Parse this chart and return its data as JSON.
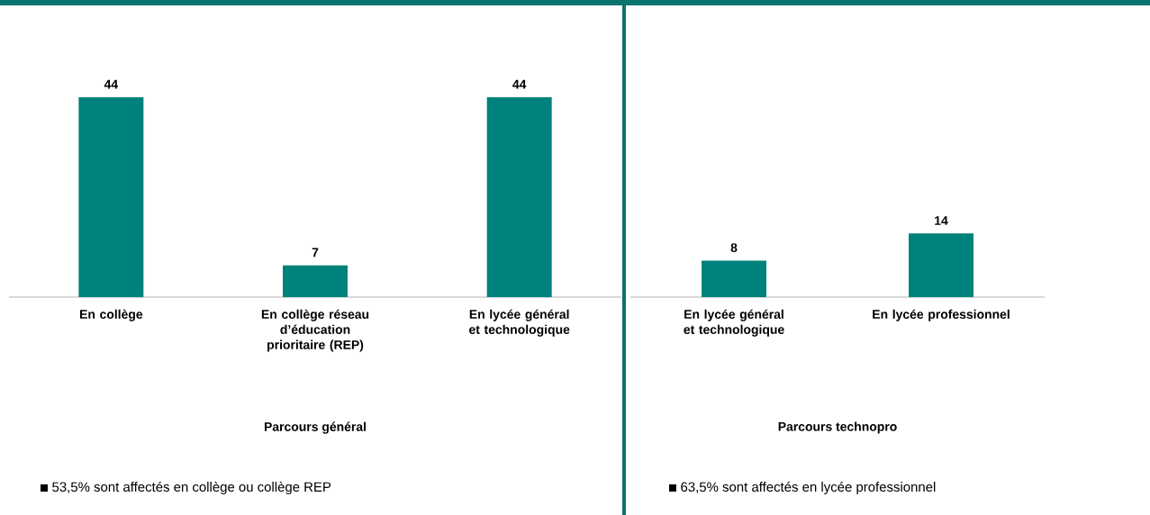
{
  "chart_data": [
    {
      "type": "bar",
      "categories": [
        "En collège",
        "En collège réseau d’éducation prioritaire (REP)",
        "En lycée général et technologique"
      ],
      "values": [
        44,
        7,
        44
      ],
      "color": "#00827c",
      "xlabel": "Parcours général",
      "data_labels": true,
      "annotations": [
        "53,5% sont affectés en collège ou collège REP"
      ]
    },
    {
      "type": "bar",
      "categories": [
        "En lycée général et technologique",
        "En lycée professionnel"
      ],
      "values": [
        8,
        14
      ],
      "color": "#00827c",
      "xlabel": "Parcours technopro",
      "data_labels": true,
      "annotations": [
        "63,5% sont affectés en lycée professionnel"
      ]
    }
  ]
}
